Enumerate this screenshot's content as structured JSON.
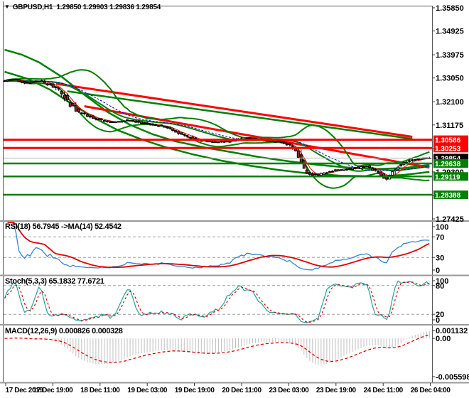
{
  "title": {
    "dropdown_icon": "▼",
    "symbol": "GBPUSD,H1",
    "quote_line": "1.29850 1.29903 1.29836 1.29854"
  },
  "colors": {
    "background": "#FFFFFF",
    "up_candle": "#FFFFFF",
    "down_candle": "#B22222",
    "candle_outline": "#000000",
    "bollinger_green": "#008000",
    "slow_green": "#008000",
    "trend_red": "#FF0000",
    "resistance_red": "#FF0000",
    "support_green": "#008000",
    "current_price_line": "#B8B8B8",
    "ma_fast_red": "#FF0000",
    "ma_blue": "#0000CC",
    "rsi_line": "#2E86D4",
    "rsi_ma": "#E00000",
    "stoch_k": "#20A39E",
    "stoch_d": "#E00000",
    "macd_hist": "#BFBFBF",
    "macd_signal": "#E00000",
    "tag_black": "#000000",
    "frame": "#555555",
    "separator": "#9A9A9A",
    "dashed_level": "#A0A0A0",
    "axis_text": "#000000"
  },
  "chart_data": [
    {
      "id": "main",
      "type": "candlestick",
      "symbol": "GBPUSD",
      "timeframe": "H1",
      "quote": {
        "open": "1.29850",
        "high": "1.29903",
        "low": "1.29836",
        "close": "1.29854"
      },
      "y_ticks": [
        1.3585,
        1.34925,
        1.33975,
        1.3305,
        1.321,
        1.31175,
        1.30225,
        1.293,
        1.2835,
        1.27425
      ],
      "x_tick_labels": [
        "17 Dec 2019",
        "17 Dec 19:00",
        "18 Dec 11:00",
        "19 Dec 03:00",
        "19 Dec 19:00",
        "20 Dec 11:00",
        "23 Dec 03:00",
        "23 Dec 19:00",
        "24 Dec 11:00",
        "26 Dec 04:00"
      ],
      "levels": {
        "resistance": [
          1.30586,
          1.30253
        ],
        "support": [
          1.29638,
          1.29119,
          1.28388
        ],
        "current_price": 1.29854
      },
      "candles_count": 150,
      "price_path": [
        [
          0,
          1.3292
        ],
        [
          4,
          1.33
        ],
        [
          9,
          1.3286
        ],
        [
          13,
          1.3293
        ],
        [
          17,
          1.3277
        ],
        [
          20,
          1.3255
        ],
        [
          23,
          1.321
        ],
        [
          27,
          1.3168
        ],
        [
          31,
          1.315
        ],
        [
          38,
          1.3128
        ],
        [
          44,
          1.3136
        ],
        [
          52,
          1.312
        ],
        [
          57,
          1.3112
        ],
        [
          62,
          1.3085
        ],
        [
          68,
          1.306
        ],
        [
          74,
          1.3048
        ],
        [
          80,
          1.3052
        ],
        [
          86,
          1.3066
        ],
        [
          92,
          1.3056
        ],
        [
          98,
          1.305
        ],
        [
          102,
          1.3032
        ],
        [
          105,
          1.2962
        ],
        [
          107,
          1.2922
        ],
        [
          111,
          1.2918
        ],
        [
          116,
          1.2936
        ],
        [
          122,
          1.2942
        ],
        [
          128,
          1.2952
        ],
        [
          132,
          1.2928
        ],
        [
          135,
          1.2902
        ],
        [
          139,
          1.2952
        ],
        [
          143,
          1.2976
        ],
        [
          147,
          1.2983
        ],
        [
          149,
          1.29854
        ]
      ],
      "overlays": {
        "ma_fast_red_period": 5,
        "ma_blue_period": 24,
        "bollinger": {
          "period": 20,
          "deviation": 2
        },
        "slow_green_1": [
          [
            0,
            1.3418
          ],
          [
            6,
            1.3398
          ],
          [
            12,
            1.3368
          ],
          [
            20,
            1.331
          ],
          [
            28,
            1.3238
          ],
          [
            36,
            1.317
          ],
          [
            44,
            1.3118
          ],
          [
            52,
            1.308
          ],
          [
            60,
            1.3052
          ],
          [
            70,
            1.3028
          ],
          [
            80,
            1.3008
          ],
          [
            90,
            1.2988
          ],
          [
            100,
            1.2972
          ],
          [
            110,
            1.2958
          ],
          [
            120,
            1.2948
          ],
          [
            130,
            1.2942
          ],
          [
            140,
            1.2945
          ],
          [
            149,
            1.2958
          ]
        ],
        "slow_green_2": [
          [
            0,
            1.333
          ],
          [
            8,
            1.3302
          ],
          [
            16,
            1.3258
          ],
          [
            24,
            1.3198
          ],
          [
            32,
            1.3142
          ],
          [
            40,
            1.3095
          ],
          [
            48,
            1.306
          ],
          [
            56,
            1.303
          ],
          [
            66,
            1.3
          ],
          [
            76,
            1.2975
          ],
          [
            86,
            1.2955
          ],
          [
            96,
            1.2938
          ],
          [
            106,
            1.2925
          ],
          [
            118,
            1.2915
          ],
          [
            130,
            1.2912
          ],
          [
            140,
            1.2918
          ],
          [
            149,
            1.293
          ]
        ],
        "trendline_red_upper": [
          [
            18,
            1.3282
          ],
          [
            143,
            1.307
          ]
        ],
        "trendline_green_upper": [
          [
            22,
            1.3252
          ],
          [
            143,
            1.3062
          ]
        ],
        "trendline_red_lower": [
          [
            28,
            1.3192
          ],
          [
            149,
            1.2948
          ]
        ]
      }
    },
    {
      "id": "rsi",
      "type": "line",
      "label": "RSI(18) 56.7945  ->MA(14) 52.4542",
      "period": 18,
      "value": 56.7945,
      "ma_period": 14,
      "ma_value": 52.4542,
      "range": [
        0,
        100
      ],
      "ticks": [
        100,
        70,
        30,
        0
      ],
      "level_lines": [
        70,
        30
      ],
      "derived_from": "candles"
    },
    {
      "id": "stoch",
      "type": "line",
      "label": "Stoch(5,3,3) 65.1832 77.6721",
      "k_value": 65.1832,
      "d_value": 77.6721,
      "range": [
        0,
        100
      ],
      "ticks": [
        100,
        80,
        20,
        0
      ],
      "level_lines": [
        80,
        20
      ],
      "derived_from": "candles"
    },
    {
      "id": "macd",
      "type": "bar",
      "label": "MACD(12,26,9) 0.000826 0.000328",
      "macd_value": 0.000826,
      "signal_value": 0.000328,
      "range": [
        -0.005598,
        0.001132
      ],
      "ticks": [
        "0.001132",
        "0.00",
        "-0.005598"
      ],
      "derived_from": "candles"
    }
  ]
}
